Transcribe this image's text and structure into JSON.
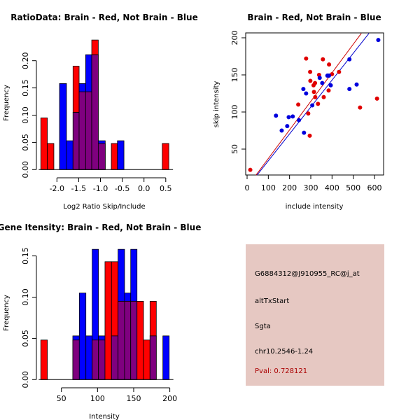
{
  "colors": {
    "brain": "#ff0000",
    "not_brain": "#0000ff",
    "overlap": "#7f007f",
    "panel_bg": "#e6c8c2",
    "pval_text": "#aa0000"
  },
  "chart_data": [
    {
      "type": "bar",
      "subtype": "overlaid-histogram",
      "title": "RatioData: Brain - Red, Not Brain - Blue",
      "xlabel": "Log2 Ratio Skip/Include",
      "ylabel": "Frequency",
      "xlim": [
        -2.4,
        0.6
      ],
      "ylim": [
        0,
        0.24
      ],
      "xticks": [
        -2.0,
        -1.5,
        -1.0,
        -0.5,
        0.0,
        0.5
      ],
      "xtick_labels": [
        "-2.0",
        "-1.5",
        "-1.0",
        "-0.5",
        "0.0",
        "0.5"
      ],
      "yticks": [
        0.0,
        0.05,
        0.1,
        0.15,
        0.2
      ],
      "ytick_labels": [
        "0.00",
        "0.05",
        "0.10",
        "0.15",
        "0.20"
      ],
      "bins": [
        {
          "x0": -2.37,
          "x1": -2.22,
          "brain": 0.095,
          "not_brain": 0
        },
        {
          "x0": -2.22,
          "x1": -2.07,
          "brain": 0.048,
          "not_brain": 0
        },
        {
          "x0": -1.94,
          "x1": -1.78,
          "brain": 0,
          "not_brain": 0.158
        },
        {
          "x0": -1.78,
          "x1": -1.63,
          "brain": 0,
          "not_brain": 0.053
        },
        {
          "x0": -1.63,
          "x1": -1.49,
          "brain": 0.19,
          "not_brain": 0.105
        },
        {
          "x0": -1.49,
          "x1": -1.34,
          "brain": 0.143,
          "not_brain": 0.158
        },
        {
          "x0": -1.34,
          "x1": -1.2,
          "brain": 0.143,
          "not_brain": 0.211
        },
        {
          "x0": -1.2,
          "x1": -1.05,
          "brain": 0.238,
          "not_brain": 0.211
        },
        {
          "x0": -1.05,
          "x1": -0.89,
          "brain": 0.048,
          "not_brain": 0.053
        },
        {
          "x0": -0.75,
          "x1": -0.61,
          "brain": 0.048,
          "not_brain": 0
        },
        {
          "x0": -0.61,
          "x1": -0.46,
          "brain": 0,
          "not_brain": 0.053
        },
        {
          "x0": 0.42,
          "x1": 0.57,
          "brain": 0.048,
          "not_brain": 0
        }
      ],
      "legend": "none (colors described in title)",
      "grid": false
    },
    {
      "type": "scatter",
      "title": "Brain - Red, Not Brain - Blue",
      "xlabel": "include intensity",
      "ylabel": "skip intensity",
      "xlim": [
        -10,
        640
      ],
      "ylim": [
        14,
        206
      ],
      "xticks": [
        0,
        100,
        200,
        300,
        400,
        500,
        600
      ],
      "xtick_labels": [
        "0",
        "100",
        "200",
        "300",
        "400",
        "500",
        "600"
      ],
      "yticks": [
        50,
        100,
        150,
        200
      ],
      "ytick_labels": [
        "50",
        "100",
        "150",
        "200"
      ],
      "series": [
        {
          "name": "Brain",
          "color": "red",
          "points": [
            [
              15,
              22
            ],
            [
              241,
              110
            ],
            [
              288,
              98
            ],
            [
              295,
              68
            ],
            [
              334,
              111
            ],
            [
              278,
              172
            ],
            [
              357,
              171
            ],
            [
              386,
              164
            ],
            [
              297,
              154
            ],
            [
              339,
              150
            ],
            [
              400,
              151
            ],
            [
              433,
              154
            ],
            [
              298,
              142
            ],
            [
              320,
              139
            ],
            [
              313,
              136
            ],
            [
              315,
              127
            ],
            [
              384,
              129
            ],
            [
              321,
              120
            ],
            [
              361,
              120
            ],
            [
              612,
              118
            ],
            [
              532,
              106
            ]
          ],
          "fit_line": [
            [
              42,
              15
            ],
            [
              538,
              206
            ]
          ]
        },
        {
          "name": "Not Brain",
          "color": "blue",
          "points": [
            [
              136,
              95
            ],
            [
              163,
              75
            ],
            [
              189,
              81
            ],
            [
              196,
              93
            ],
            [
              215,
              94
            ],
            [
              244,
              89
            ],
            [
              268,
              72
            ],
            [
              307,
              109
            ],
            [
              482,
              171
            ],
            [
              342,
              146
            ],
            [
              378,
              149
            ],
            [
              386,
              149
            ],
            [
              354,
              139
            ],
            [
              394,
              136
            ],
            [
              265,
              131
            ],
            [
              278,
              125
            ],
            [
              482,
              131
            ],
            [
              516,
              137
            ],
            [
              618,
              197
            ]
          ],
          "fit_line": [
            [
              47,
              15
            ],
            [
              574,
              206
            ]
          ]
        }
      ],
      "grid": false
    },
    {
      "type": "bar",
      "subtype": "overlaid-histogram",
      "title": "Gene Itensity: Brain - Red, Not Brain - Blue",
      "xlabel": "Intensity",
      "ylabel": "Frequency",
      "xlim": [
        15,
        205
      ],
      "ylim": [
        0,
        0.16
      ],
      "xticks": [
        50,
        100,
        150,
        200
      ],
      "xtick_labels": [
        "50",
        "100",
        "150",
        "200"
      ],
      "yticks": [
        0.0,
        0.05,
        0.1,
        0.15
      ],
      "ytick_labels": [
        "0.00",
        "0.05",
        "0.10",
        "0.15"
      ],
      "bins": [
        {
          "x0": 21.5,
          "x1": 30.6,
          "brain": 0.048,
          "not_brain": 0
        },
        {
          "x0": 65.8,
          "x1": 74.8,
          "brain": 0.048,
          "not_brain": 0.053
        },
        {
          "x0": 74.8,
          "x1": 83.9,
          "brain": 0,
          "not_brain": 0.105
        },
        {
          "x0": 83.9,
          "x1": 92.6,
          "brain": 0,
          "not_brain": 0.053
        },
        {
          "x0": 92.6,
          "x1": 101.3,
          "brain": 0.048,
          "not_brain": 0.158
        },
        {
          "x0": 101.3,
          "x1": 110.3,
          "brain": 0.048,
          "not_brain": 0.053
        },
        {
          "x0": 110.3,
          "x1": 119.3,
          "brain": 0.143,
          "not_brain": 0
        },
        {
          "x0": 119.3,
          "x1": 128.4,
          "brain": 0.143,
          "not_brain": 0.053
        },
        {
          "x0": 128.4,
          "x1": 137.4,
          "brain": 0.095,
          "not_brain": 0.158
        },
        {
          "x0": 137.4,
          "x1": 145.9,
          "brain": 0.095,
          "not_brain": 0.105
        },
        {
          "x0": 145.9,
          "x1": 154.6,
          "brain": 0.095,
          "not_brain": 0.158
        },
        {
          "x0": 154.6,
          "x1": 163.6,
          "brain": 0.095,
          "not_brain": 0
        },
        {
          "x0": 163.6,
          "x1": 172.6,
          "brain": 0.048,
          "not_brain": 0
        },
        {
          "x0": 172.6,
          "x1": 181.3,
          "brain": 0.095,
          "not_brain": 0.053
        },
        {
          "x0": 190.4,
          "x1": 199.1,
          "brain": 0,
          "not_brain": 0.053
        }
      ],
      "legend": "none (colors described in title)",
      "grid": false
    }
  ],
  "info_panel": {
    "probe_id": "G6884312@J910955_RC@j_at",
    "event_type": "altTxStart",
    "gene": "Sgta",
    "location": "chr10.2546-1.24",
    "pval": "Pval: 0.728121"
  }
}
